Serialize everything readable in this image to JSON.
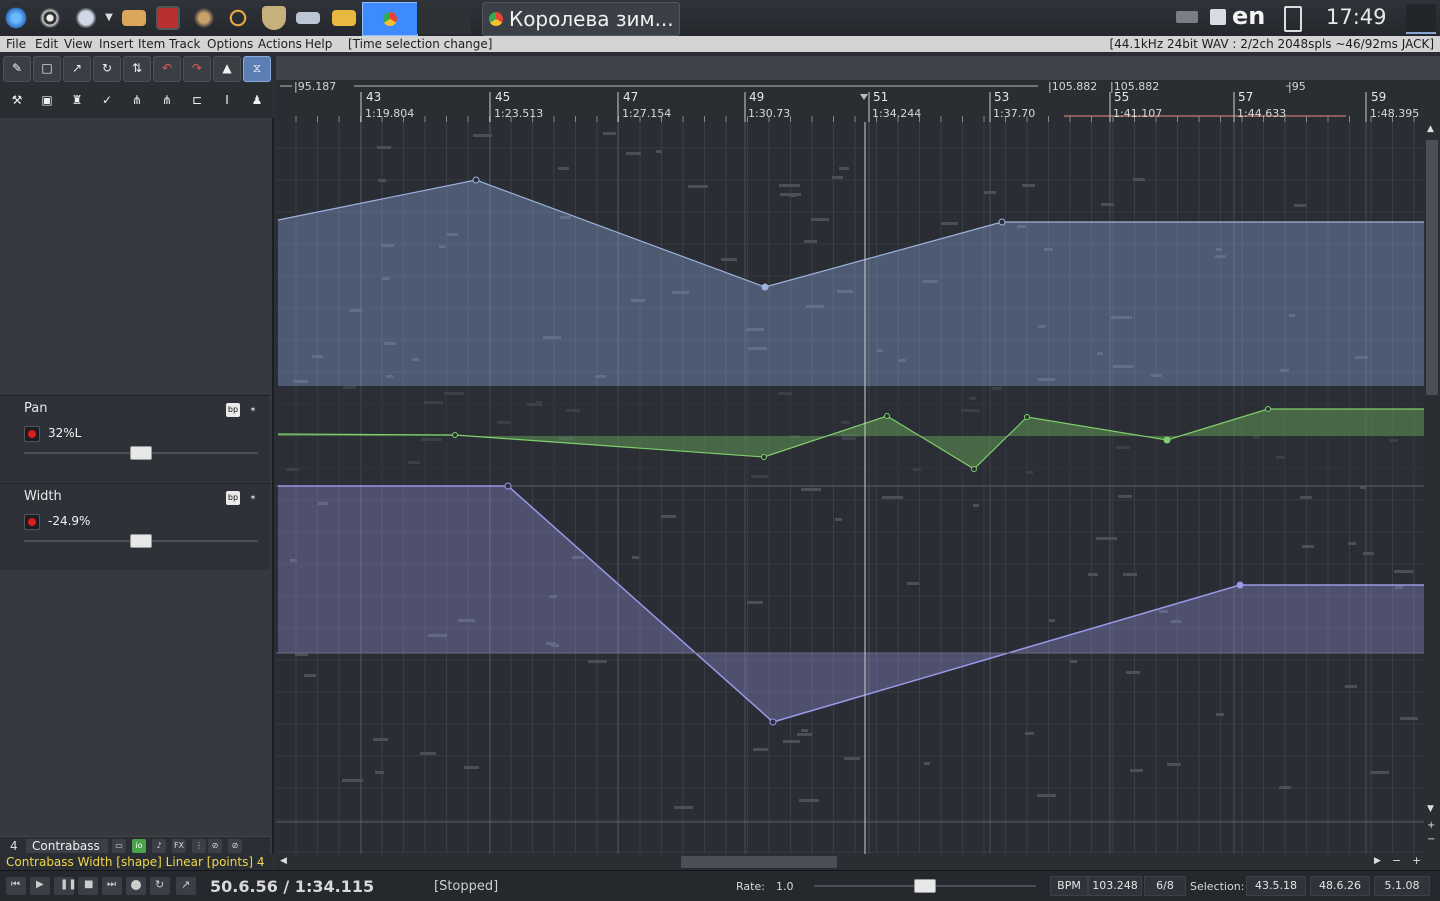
{
  "taskbar": {
    "window_title": "Королева зим...",
    "language": "en",
    "clock": "17:49"
  },
  "menubar": {
    "items": [
      "File",
      "Edit",
      "View",
      "Insert",
      "Item",
      "Track",
      "Options",
      "Actions",
      "Help"
    ],
    "status_hint": "[Time selection change]",
    "audio_info": "[44.1kHz 24bit WAV : 2/2ch 2048spls ~46/92ms JACK]"
  },
  "ruler": {
    "region_start": "|95.187",
    "region_mid": "|105.882",
    "region_mid2": "|105.882",
    "region_end": "|95",
    "bars": [
      {
        "bar": "43",
        "time": "1:19.804"
      },
      {
        "bar": "45",
        "time": "1:23.513"
      },
      {
        "bar": "47",
        "time": "1:27.154"
      },
      {
        "bar": "49",
        "time": "1:30.73"
      },
      {
        "bar": "51",
        "time": "1:34.244"
      },
      {
        "bar": "53",
        "time": "1:37.70"
      },
      {
        "bar": "55",
        "time": "1:41.107"
      },
      {
        "bar": "57",
        "time": "1:44.633"
      },
      {
        "bar": "59",
        "time": "1:48.395"
      }
    ]
  },
  "envelopes": {
    "pan": {
      "name": "Pan",
      "value": "32%L",
      "bypass": "bp"
    },
    "width": {
      "name": "Width",
      "value": "-24.9%",
      "bypass": "bp"
    }
  },
  "track": {
    "number": "4",
    "name": "Contrabass",
    "fx": "FX"
  },
  "arrange_status": "Contrabass Width [shape] Linear [points] 4",
  "transport": {
    "position": "50.6.56 / 1:34.115",
    "state": "[Stopped]",
    "rate_label": "Rate:",
    "rate": "1.0",
    "bpm_label": "BPM",
    "bpm": "103.248",
    "time_sig": "6/8",
    "selection_label": "Selection:",
    "sel_start": "43.5.18",
    "sel_end": "48.6.26",
    "sel_length": "5.1.08"
  },
  "colors": {
    "volume_env": "#8aa4d4",
    "pan_env": "#7fd06a",
    "width_env": "#9a98e8",
    "accent": "#3d8bff"
  }
}
